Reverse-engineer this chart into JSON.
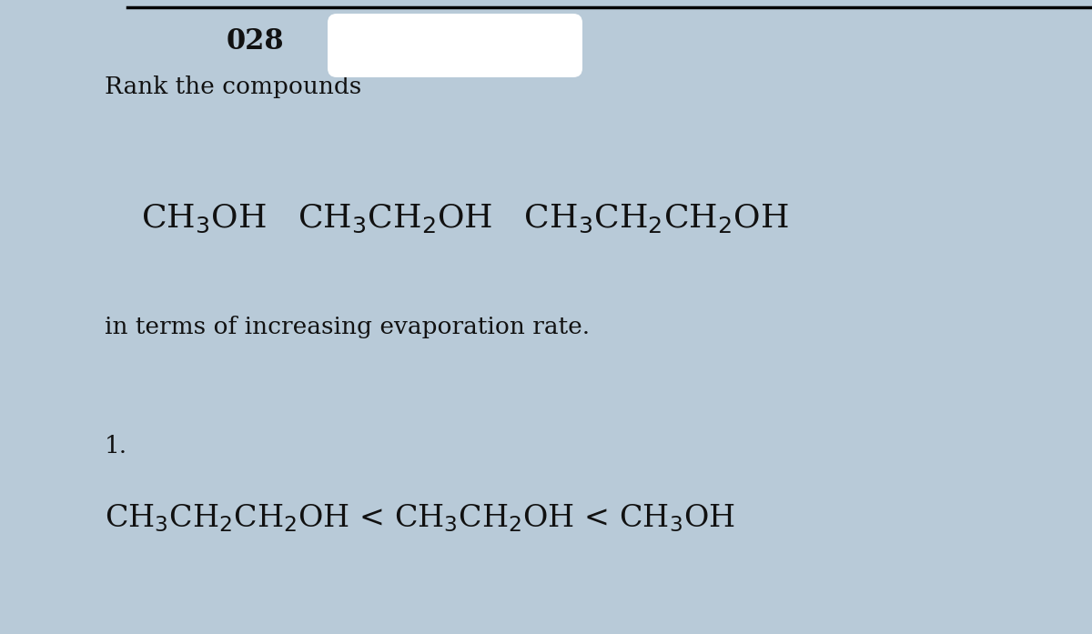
{
  "background_color": "#b8cad8",
  "title_number": "028",
  "title_number_fontsize": 22,
  "title_number_fontweight": "bold",
  "question_line1": "Rank the compounds",
  "question_fontsize": 19,
  "compounds_line": "CH$_3$OH   CH$_3$CH$_2$OH   CH$_3$CH$_2$CH$_2$OH",
  "compounds_fontsize": 26,
  "question_line2": "in terms of increasing evaporation rate.",
  "answer_number": "1.",
  "answer_number_fontsize": 19,
  "answer_line": "CH$_3$CH$_2$CH$_2$OH < CH$_3$CH$_2$OH < CH$_3$OH",
  "answer_fontsize": 24,
  "text_color": "#111111"
}
